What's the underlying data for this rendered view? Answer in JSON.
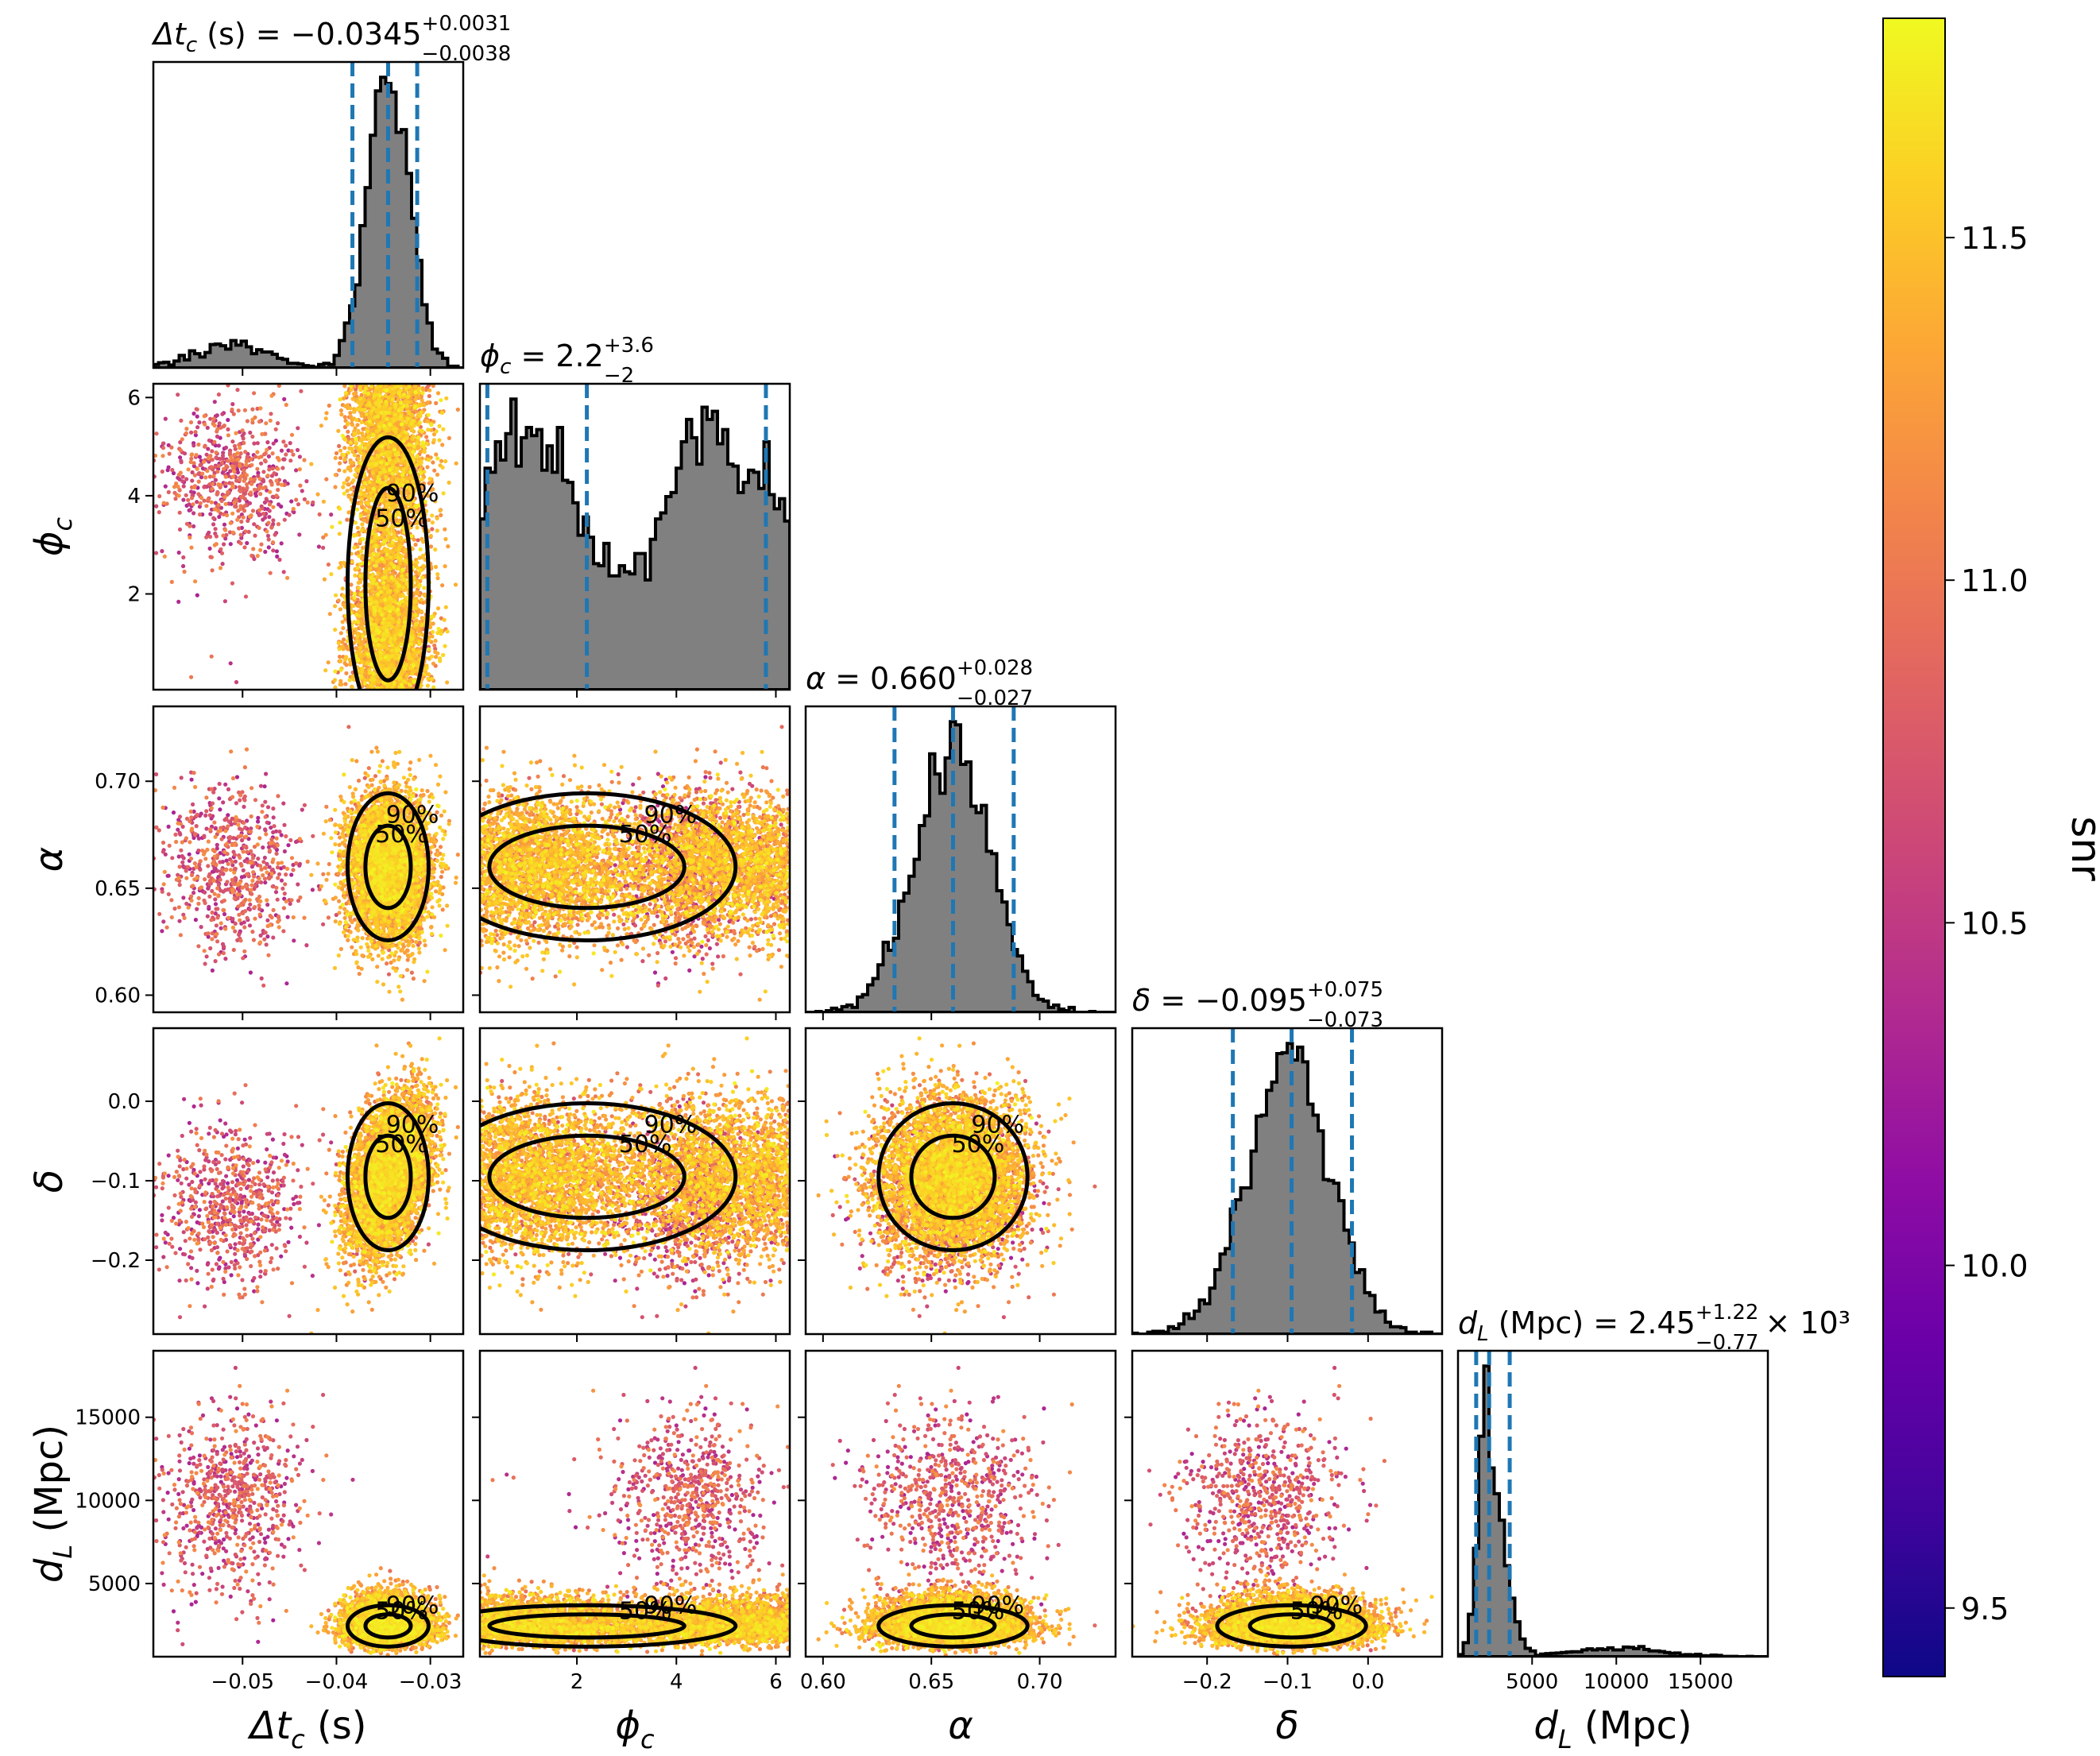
{
  "colors": {
    "hist_fill": "#808080",
    "hist_edge": "#000000",
    "quantile_line": "#1f77b4",
    "contour": "#000000",
    "colormap": "plasma"
  },
  "chart_data": {
    "type": "scatter",
    "subtype": "corner-plot",
    "parameters": [
      {
        "key": "dt",
        "label": "Δt",
        "sub": "c",
        "unit": " (s)",
        "range": [
          -0.0595,
          -0.0265
        ],
        "ticks": [
          -0.05,
          -0.04,
          -0.03
        ],
        "tick_labels": [
          "−0.05",
          "−0.04",
          "−0.03"
        ],
        "median": -0.0345,
        "plus": 0.0031,
        "minus": 0.0038,
        "title_value": "−0.0345",
        "title_plus": "+0.0031",
        "title_minus": "−0.0038",
        "title_suffix": ""
      },
      {
        "key": "phi",
        "label": "ϕ",
        "sub": "c",
        "unit": "",
        "range": [
          0.05,
          6.28
        ],
        "ticks": [
          2,
          4,
          6
        ],
        "tick_labels": [
          "2",
          "4",
          "6"
        ],
        "median": 2.2,
        "plus": 3.6,
        "minus": 2.0,
        "title_value": "2.2",
        "title_plus": "+3.6",
        "title_minus": "−2",
        "title_suffix": ""
      },
      {
        "key": "alpha",
        "label": "α",
        "sub": "",
        "unit": "",
        "range": [
          0.592,
          0.735
        ],
        "ticks": [
          0.6,
          0.65,
          0.7
        ],
        "tick_labels": [
          "0.60",
          "0.65",
          "0.70"
        ],
        "median": 0.66,
        "plus": 0.028,
        "minus": 0.027,
        "title_value": "0.660",
        "title_plus": "+0.028",
        "title_minus": "−0.027",
        "title_suffix": ""
      },
      {
        "key": "delta",
        "label": "δ",
        "sub": "",
        "unit": "",
        "range": [
          -0.293,
          0.092
        ],
        "ticks": [
          -0.2,
          -0.1,
          0.0
        ],
        "tick_labels": [
          "−0.2",
          "−0.1",
          "0.0"
        ],
        "median": -0.095,
        "plus": 0.075,
        "minus": 0.073,
        "title_value": "−0.095",
        "title_plus": "+0.075",
        "title_minus": "−0.073",
        "title_suffix": ""
      },
      {
        "key": "dL",
        "label": "d",
        "sub": "L",
        "unit": " (Mpc)",
        "range": [
          600,
          19000
        ],
        "ticks": [
          5000,
          10000,
          15000
        ],
        "tick_labels": [
          "5000",
          "10000",
          "15000"
        ],
        "median": 2450,
        "plus": 1220,
        "minus": 770,
        "title_value": "2.45",
        "title_plus": "+1.22",
        "title_minus": "−0.77",
        "title_suffix": " × 10³"
      }
    ],
    "contour_levels": [
      "50%",
      "90%"
    ],
    "colorbar": {
      "label": "snr",
      "range": [
        9.4,
        11.82
      ],
      "ticks": [
        9.5,
        10.0,
        10.5,
        11.0,
        11.5
      ],
      "tick_labels": [
        "9.5",
        "10.0",
        "10.5",
        "11.0",
        "11.5"
      ]
    }
  }
}
